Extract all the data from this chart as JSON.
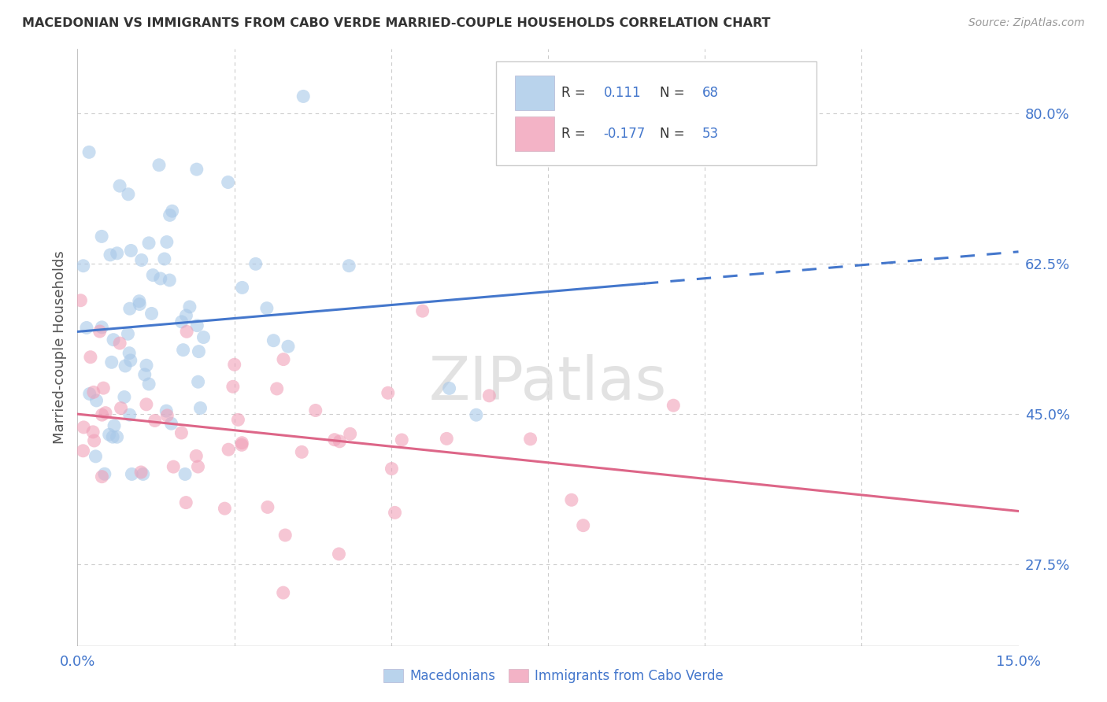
{
  "title": "MACEDONIAN VS IMMIGRANTS FROM CABO VERDE MARRIED-COUPLE HOUSEHOLDS CORRELATION CHART",
  "source": "Source: ZipAtlas.com",
  "ylabel": "Married-couple Households",
  "xlim": [
    0.0,
    0.15
  ],
  "ylim": [
    0.18,
    0.875
  ],
  "right_yticks": [
    0.275,
    0.45,
    0.625,
    0.8
  ],
  "right_ytick_labels": [
    "27.5%",
    "45.0%",
    "62.5%",
    "80.0%"
  ],
  "series1_color": "#a8c8e8",
  "series2_color": "#f0a0b8",
  "trend1_color": "#4477cc",
  "trend2_color": "#dd6688",
  "legend_r1": "0.111",
  "legend_n1": "68",
  "legend_r2": "-0.177",
  "legend_n2": "53",
  "legend_text_color": "#4477cc",
  "watermark": "ZIPatlas",
  "background_color": "#ffffff",
  "grid_color": "#cccccc",
  "label_color": "#4477cc",
  "bottom_label1": "Macedonians",
  "bottom_label2": "Immigrants from Cabo Verde"
}
